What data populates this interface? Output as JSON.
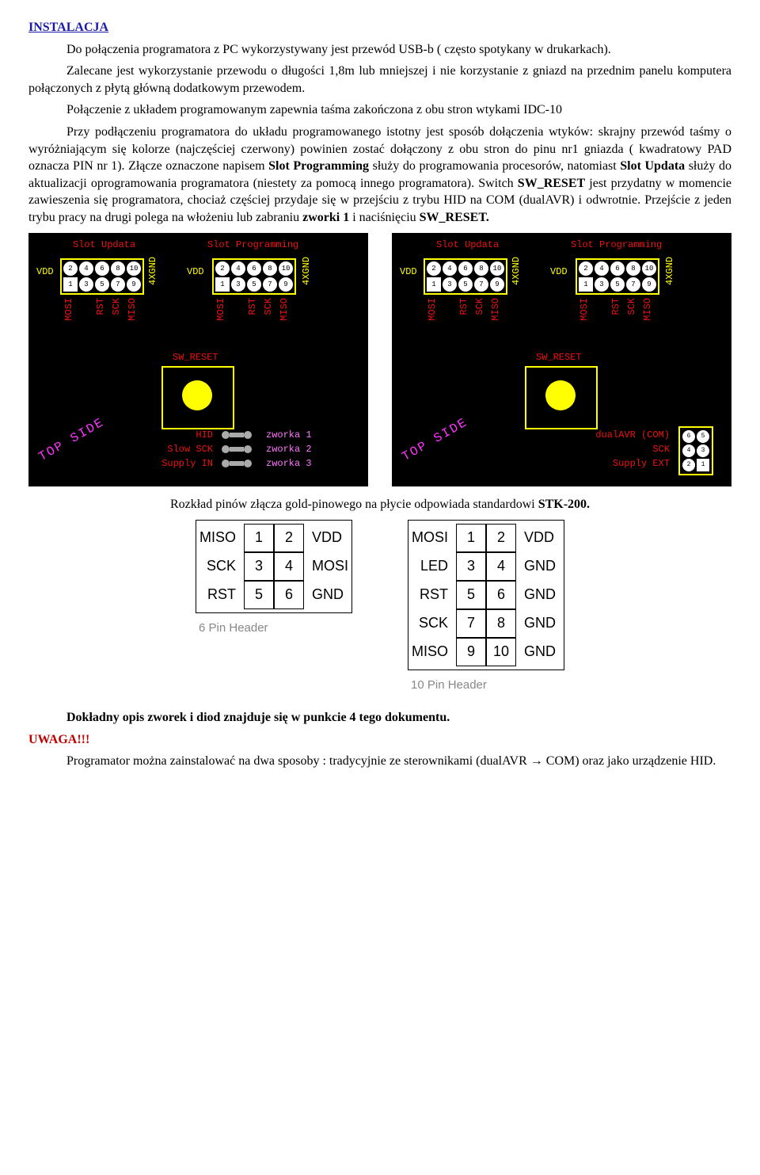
{
  "title": "INSTALACJA",
  "p1a": "Do połączenia programatora z PC wykorzystywany jest przewód USB-b ( często spotykany w drukarkach).",
  "p1b": "Zalecane jest wykorzystanie przewodu o długości 1,8m lub mniejszej i nie korzystanie z gniazd na przednim panelu komputera połączonych z płytą główną dodatkowym przewodem.",
  "p1c": "Połączenie z układem programowanym zapewnia taśma zakończona z obu stron wtykami IDC-10",
  "p2_pre": "Przy podłączeniu programatora do układu programowanego istotny jest sposób dołączenia wtyków: skrajny przewód taśmy o wyróżniającym się kolorze (najczęściej czerwony) powinien zostać dołączony z obu stron do pinu nr1 gniazda ( kwadratowy PAD oznacza PIN nr 1). Złącze oznaczone napisem ",
  "slot_prog": "Slot Programming",
  "p2_mid1": " służy do programowania procesorów, natomiast ",
  "slot_upd": "Slot Updata",
  "p2_mid2": " służy do aktualizacji oprogramowania programatora (niestety za pomocą innego programatora). Switch ",
  "sw_reset": "SW_RESET",
  "p2_mid3": " jest przydatny w momencie zawieszenia się programatora, chociaż częściej przydaje się w przejściu z trybu HID na COM (dualAVR) i odwrotnie. Przejście z jeden trybu pracy na drugi polega na włożeniu lub zabraniu ",
  "zworki1": "zworki 1",
  "p2_mid4": " i naciśnięciu ",
  "sw_reset2": "SW_RESET.",
  "pcb": {
    "slot_updata": "Slot Updata",
    "slot_programming": "Slot Programming",
    "vdd": "VDD",
    "fourxgnd": "4XGND",
    "sw_reset": "SW_RESET",
    "pins_side": [
      "MOSI",
      "RST",
      "SCK",
      "MISO"
    ],
    "left_settings": [
      "HID",
      "Slow SCK",
      "Supply IN"
    ],
    "right_settings": [
      "dualAVR (COM)",
      "SCK",
      "Supply EXT"
    ],
    "zworka": [
      "zworka 1",
      "zworka 2",
      "zworka 3"
    ],
    "top_side": "TOP SIDE",
    "header_pins_top": [
      "2",
      "4",
      "6",
      "8",
      "10"
    ],
    "header_pins_bot": [
      "1",
      "3",
      "5",
      "7",
      "9"
    ],
    "zworki_pins": [
      [
        "6",
        "5"
      ],
      [
        "4",
        "3"
      ],
      [
        "2",
        "1"
      ]
    ],
    "colors": {
      "bg": "#000000",
      "outline": "#ffff00",
      "red_text": "#ee1111",
      "magenta": "#ff77ff",
      "btn": "#ffff00"
    }
  },
  "caption_stk_pre": "Rozkład pinów złącza gold-pinowego na płycie odpowiada standardowi ",
  "caption_stk_bold": "STK-200.",
  "stk6": {
    "rows": [
      {
        "l": "MISO",
        "a": "1",
        "b": "2",
        "r": "VDD"
      },
      {
        "l": "SCK",
        "a": "3",
        "b": "4",
        "r": "MOSI"
      },
      {
        "l": "RST",
        "a": "5",
        "b": "6",
        "r": "GND"
      }
    ],
    "caption": "6 Pin Header"
  },
  "stk10": {
    "rows": [
      {
        "l": "MOSI",
        "a": "1",
        "b": "2",
        "r": "VDD"
      },
      {
        "l": "LED",
        "a": "3",
        "b": "4",
        "r": "GND"
      },
      {
        "l": "RST",
        "a": "5",
        "b": "6",
        "r": "GND"
      },
      {
        "l": "SCK",
        "a": "7",
        "b": "8",
        "r": "GND"
      },
      {
        "l": "MISO",
        "a": "9",
        "b": "10",
        "r": "GND"
      }
    ],
    "caption": "10 Pin Header"
  },
  "caption_zworek": "Dokładny opis zworek i diod znajduje się w punkcie 4 tego dokumentu.",
  "uwaga": "UWAGA!!!",
  "p_last": "Programator można zainstalować na dwa sposoby : tradycyjnie ze sterownikami (dualAVR → COM) oraz jako urządzenie HID."
}
